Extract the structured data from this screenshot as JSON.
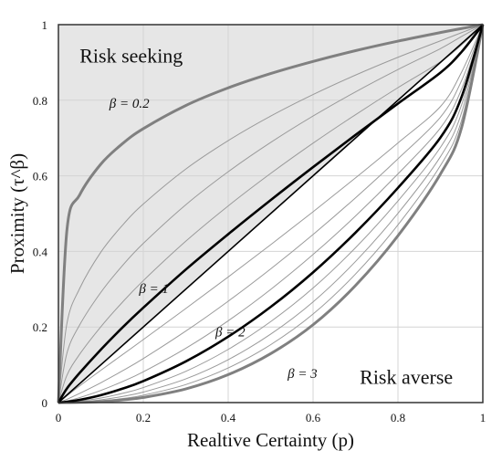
{
  "chart_data": {
    "type": "line",
    "xlabel": "Realtive Certainty (p)",
    "ylabel": "Proximity (τ^β)",
    "xlim": [
      0,
      1
    ],
    "ylim": [
      0,
      1
    ],
    "x_ticks": [
      "0",
      "0.2",
      "0.4",
      "0.6",
      "0.8",
      "1"
    ],
    "y_ticks": [
      "0",
      "0.2",
      "0.4",
      "0.6",
      "0.8",
      "1"
    ],
    "grid": true,
    "x": [
      0,
      0.02,
      0.05,
      0.1,
      0.15,
      0.2,
      0.3,
      0.4,
      0.5,
      0.6,
      0.7,
      0.8,
      0.9,
      0.95,
      1
    ],
    "annotations": [
      {
        "text": "Risk seeking",
        "x": 0.05,
        "y": 0.9
      },
      {
        "text": "Risk averse",
        "x": 0.71,
        "y": 0.05
      },
      {
        "text": "β = 0.2",
        "x": 0.12,
        "y": 0.78
      },
      {
        "text": "β = 1",
        "x": 0.19,
        "y": 0.29
      },
      {
        "text": "β = 2",
        "x": 0.37,
        "y": 0.175
      },
      {
        "text": "β = 3",
        "x": 0.54,
        "y": 0.065
      }
    ],
    "regions": [
      {
        "label": "Risk seeking",
        "fill": "#e6e6e6"
      }
    ],
    "series": [
      {
        "name": "β = 0.2",
        "style": "bold-gray",
        "values": [
          0,
          0.4559,
          0.5494,
          0.631,
          0.6843,
          0.7248,
          0.786,
          0.8327,
          0.8706,
          0.9027,
          0.9312,
          0.9564,
          0.9791,
          0.9897,
          1
        ]
      },
      {
        "style": "thin",
        "values": [
          0,
          0.2091,
          0.3017,
          0.3981,
          0.4681,
          0.5253,
          0.6178,
          0.6931,
          0.7579,
          0.815,
          0.8665,
          0.9136,
          0.9571,
          0.9789,
          1
        ]
      },
      {
        "style": "thin",
        "values": [
          0,
          0.1305,
          0.2054,
          0.2917,
          0.3613,
          0.4211,
          0.5233,
          0.6108,
          0.6882,
          0.7582,
          0.8221,
          0.8812,
          0.9365,
          0.9688,
          1
        ]
      },
      {
        "style": "thin",
        "values": [
          0,
          0.0721,
          0.1278,
          0.2006,
          0.2645,
          0.3226,
          0.4268,
          0.5203,
          0.6062,
          0.6864,
          0.7617,
          0.8333,
          0.9014,
          0.9464,
          1
        ]
      },
      {
        "name": "β = 1",
        "style": "bold-black",
        "values": [
          0,
          0.0372,
          0.0784,
          0.1402,
          0.1976,
          0.251,
          0.3519,
          0.4455,
          0.5356,
          0.623,
          0.7082,
          0.7911,
          0.8729,
          0.928,
          1
        ]
      },
      {
        "style": "thin",
        "values": [
          0,
          0.0178,
          0.0441,
          0.0855,
          0.126,
          0.1666,
          0.2488,
          0.3323,
          0.4176,
          0.5049,
          0.5946,
          0.687,
          0.7832,
          0.8745,
          1
        ]
      },
      {
        "style": "thin",
        "values": [
          0,
          0.0087,
          0.0243,
          0.0525,
          0.0834,
          0.1165,
          0.1891,
          0.2682,
          0.3535,
          0.4447,
          0.5418,
          0.645,
          0.7551,
          0.8521,
          1
        ]
      },
      {
        "style": "thin",
        "values": [
          0,
          0.0042,
          0.0132,
          0.0322,
          0.0552,
          0.0814,
          0.1436,
          0.2164,
          0.2993,
          0.3918,
          0.4936,
          0.605,
          0.7265,
          0.8298,
          1
        ]
      },
      {
        "name": "β = 2",
        "style": "bold-black",
        "values": [
          0,
          0.0021,
          0.0072,
          0.0197,
          0.0365,
          0.0568,
          0.1089,
          0.1743,
          0.253,
          0.3446,
          0.4498,
          0.5681,
          0.701,
          0.8091,
          1
        ]
      },
      {
        "style": "thin",
        "values": [
          0,
          0.001,
          0.0039,
          0.0121,
          0.0242,
          0.0397,
          0.0826,
          0.1407,
          0.214,
          0.303,
          0.4098,
          0.5334,
          0.6752,
          0.7878,
          1
        ]
      },
      {
        "style": "thin",
        "values": [
          0,
          0.0005,
          0.0021,
          0.0074,
          0.016,
          0.0277,
          0.0627,
          0.1135,
          0.181,
          0.2664,
          0.3733,
          0.5007,
          0.6505,
          0.7673,
          1
        ]
      },
      {
        "style": "thin",
        "values": [
          0,
          0.0002,
          0.0011,
          0.0045,
          0.0106,
          0.0194,
          0.0476,
          0.0916,
          0.1531,
          0.2342,
          0.3401,
          0.4702,
          0.627,
          0.7473,
          1
        ]
      },
      {
        "name": "β = 3",
        "style": "bold-gray",
        "values": [
          0,
          0.0001,
          0.0006,
          0.0028,
          0.007,
          0.0135,
          0.0361,
          0.0739,
          0.1294,
          0.2059,
          0.3098,
          0.4414,
          0.6046,
          0.7278,
          1
        ]
      }
    ]
  }
}
